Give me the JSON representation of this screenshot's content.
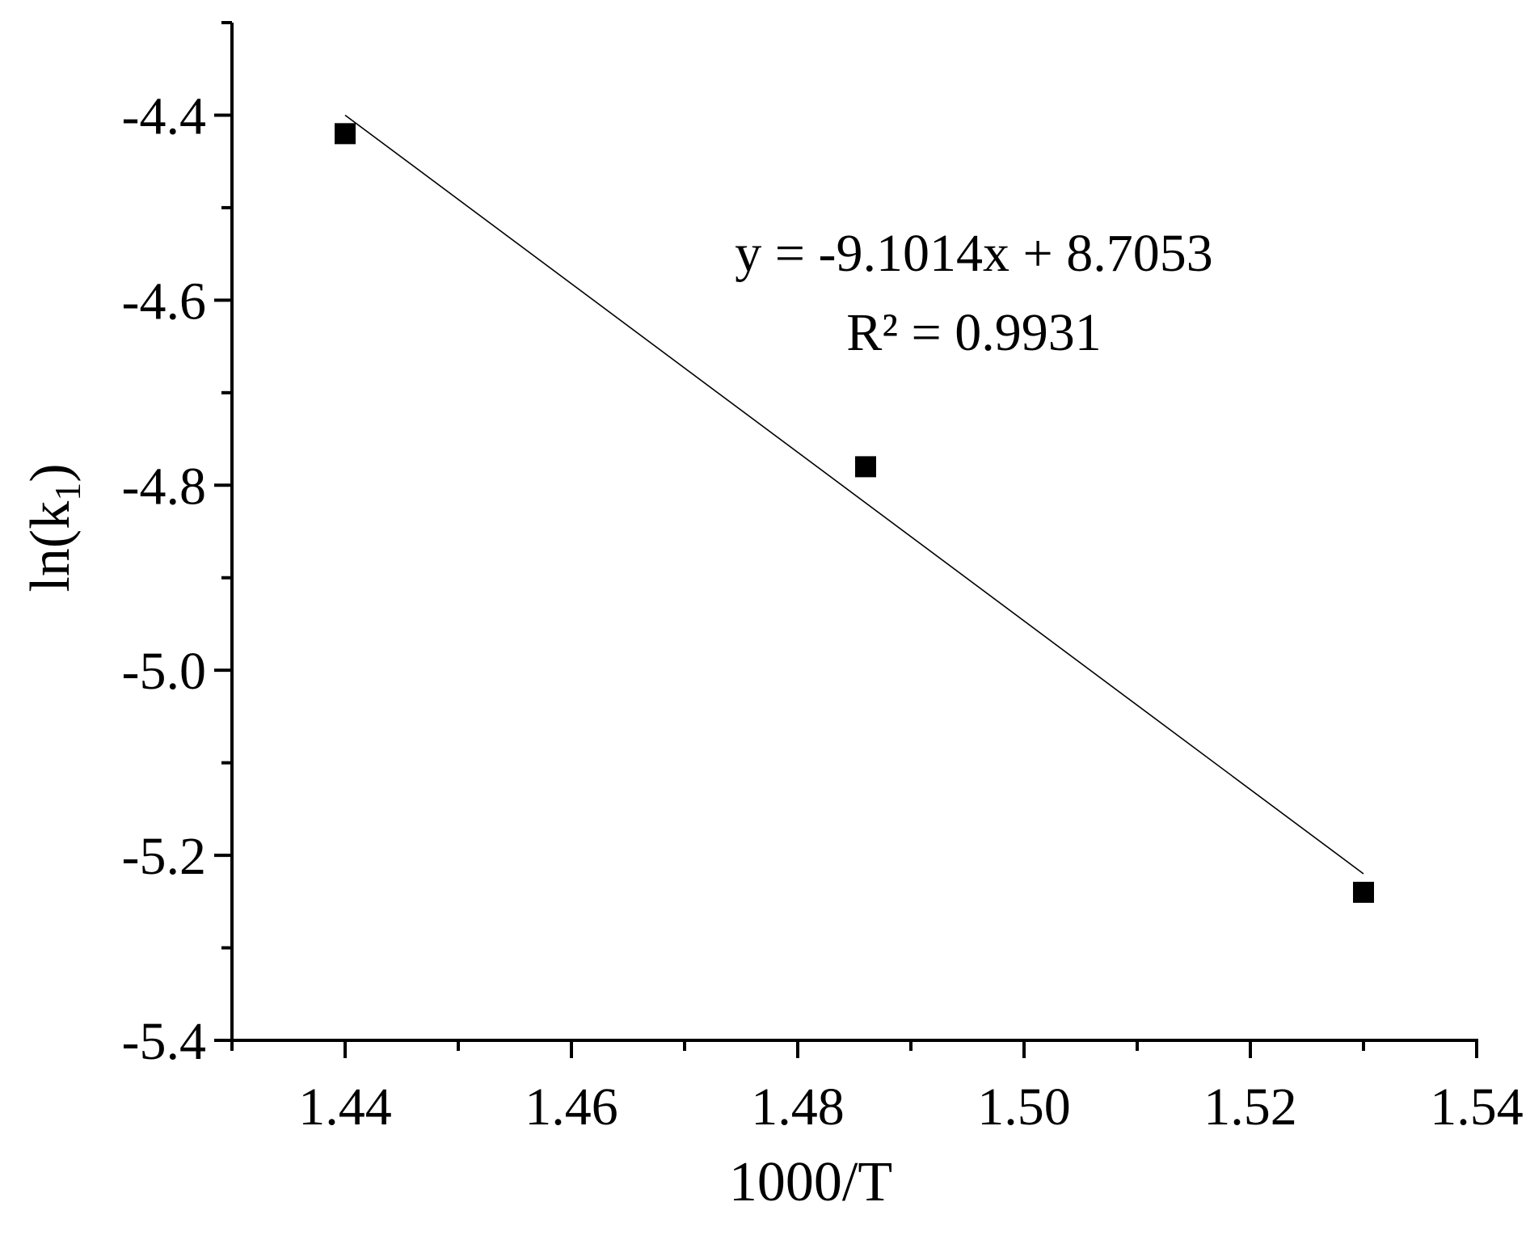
{
  "chart_data": {
    "type": "scatter",
    "xlabel": "1000/T",
    "ylabel_main": "ln(k",
    "ylabel_sub": "1",
    "ylabel_close": ")",
    "xlim": [
      1.43,
      1.54
    ],
    "ylim": [
      -5.4,
      -4.3
    ],
    "x_ticks": [
      {
        "value": 1.44,
        "label": "1.44"
      },
      {
        "value": 1.46,
        "label": "1.46"
      },
      {
        "value": 1.48,
        "label": "1.48"
      },
      {
        "value": 1.5,
        "label": "1.50"
      },
      {
        "value": 1.52,
        "label": "1.52"
      },
      {
        "value": 1.54,
        "label": "1.54"
      }
    ],
    "x_minor_ticks": [
      1.43,
      1.45,
      1.47,
      1.49,
      1.51,
      1.53
    ],
    "y_ticks": [
      {
        "value": -4.4,
        "label": "-4.4"
      },
      {
        "value": -4.6,
        "label": "-4.6"
      },
      {
        "value": -4.8,
        "label": "-4.8"
      },
      {
        "value": -5.0,
        "label": "-5.0"
      },
      {
        "value": -5.2,
        "label": "-5.2"
      },
      {
        "value": -5.4,
        "label": "-5.4"
      }
    ],
    "y_minor_ticks": [
      -4.3,
      -4.5,
      -4.7,
      -4.9,
      -5.1,
      -5.3
    ],
    "points": [
      {
        "x": 1.44,
        "y": -4.42
      },
      {
        "x": 1.486,
        "y": -4.78
      },
      {
        "x": 1.53,
        "y": -5.24
      }
    ],
    "fit_line": {
      "x": [
        1.44,
        1.53
      ],
      "y": [
        -4.4,
        -5.22
      ]
    },
    "equation": "y = -9.1014x + 8.7053",
    "r_squared": "R² = 0.9931",
    "grid": false,
    "marker_color": "#000000",
    "line_color": "#000000"
  }
}
